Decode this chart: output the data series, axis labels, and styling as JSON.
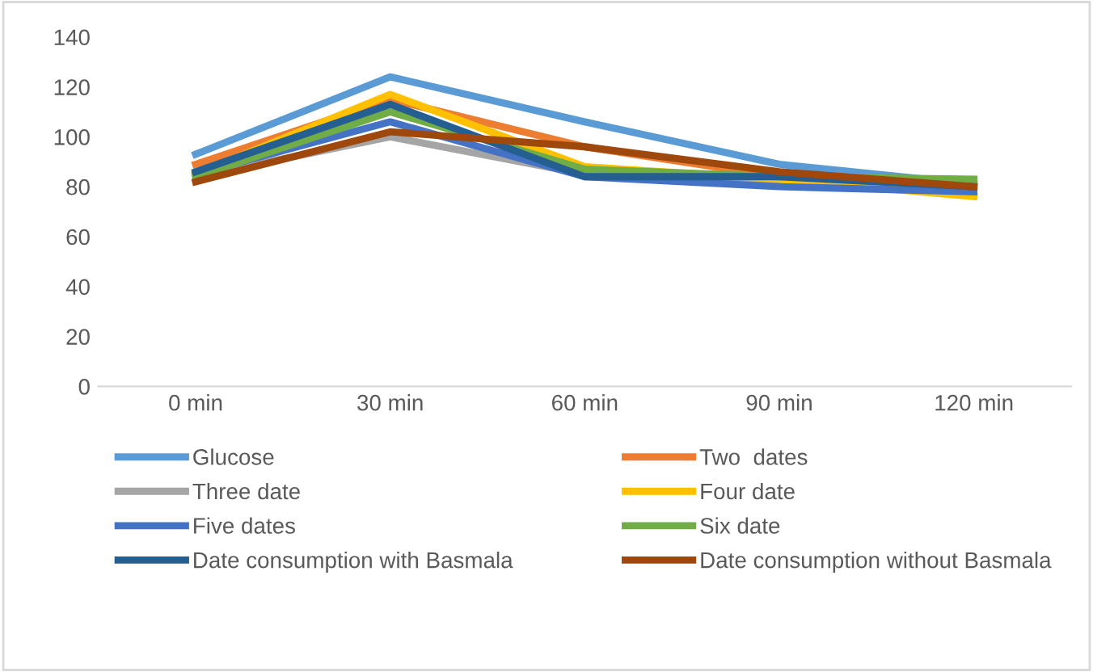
{
  "chart_data": {
    "type": "line",
    "categories": [
      "0 min",
      "30 min",
      "60 min",
      "90 min",
      "120 min"
    ],
    "ylim": [
      0,
      140
    ],
    "yticks": [
      0,
      20,
      40,
      60,
      80,
      100,
      120,
      140
    ],
    "grid": false,
    "legend": "bottom",
    "marker": "none",
    "line_style": "solid",
    "series": [
      {
        "name": "Glucose",
        "color": "#5b9bd5",
        "values": [
          93,
          124,
          106,
          89,
          81
        ]
      },
      {
        "name": "Two  dates",
        "color": "#ed7d31",
        "values": [
          89,
          115,
          96,
          84,
          79
        ]
      },
      {
        "name": "Three date",
        "color": "#a5a5a5",
        "values": [
          84,
          100,
          85,
          82,
          80
        ]
      },
      {
        "name": "Four date",
        "color": "#ffc000",
        "values": [
          85,
          117,
          88,
          83,
          76
        ]
      },
      {
        "name": "Five dates",
        "color": "#4472c4",
        "values": [
          85,
          106,
          84,
          80,
          78
        ]
      },
      {
        "name": "Six date",
        "color": "#70ad47",
        "values": [
          84,
          110,
          87,
          84,
          83
        ]
      },
      {
        "name": "Date consumption with Basmala",
        "color": "#255e91",
        "values": [
          86,
          113,
          84,
          84,
          80
        ]
      },
      {
        "name": "Date consumption without Basmala",
        "color": "#9e480e",
        "values": [
          82,
          102,
          96,
          86,
          80
        ]
      }
    ]
  }
}
